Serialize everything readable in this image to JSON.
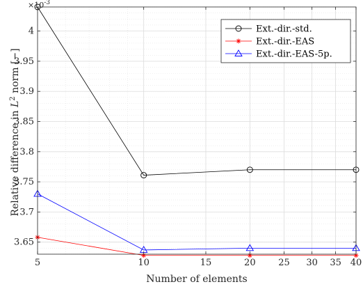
{
  "chart_data": {
    "type": "line",
    "xlabel": "Number of elements",
    "ylabel_main": "Relative difference in ",
    "ylabel_math": "L",
    "ylabel_sup": "2",
    "ylabel_tail": " norm [−]",
    "y_multiplier_base": "×10",
    "y_multiplier_exp": "-3",
    "x_scale": "log",
    "xlim": [
      5,
      40
    ],
    "ylim": [
      3.63,
      4.04
    ],
    "x_ticks": [
      5,
      10,
      15,
      20,
      25,
      30,
      35,
      40
    ],
    "x_tick_labels": [
      "5",
      "10",
      "15",
      "20",
      "25",
      "30",
      "35",
      "40"
    ],
    "y_ticks": [
      3.65,
      3.7,
      3.75,
      3.8,
      3.85,
      3.9,
      3.95,
      4.0
    ],
    "y_tick_labels": [
      "3.65",
      "3.7",
      "3.75",
      "3.8",
      "3.85",
      "3.9",
      "3.95",
      "4"
    ],
    "grid": true,
    "legend_position": "top-right",
    "x": [
      5,
      10,
      20,
      40
    ],
    "series": [
      {
        "name": "Ext.-dir.-std.",
        "color": "#000000",
        "marker": "circle",
        "values": [
          4.04,
          3.761,
          3.77,
          3.77
        ]
      },
      {
        "name": "Ext.-dir.-EAS",
        "color": "#ff0000",
        "marker": "asterisk",
        "values": [
          3.658,
          3.628,
          3.628,
          3.628
        ]
      },
      {
        "name": "Ext.-dir.-EAS-5p.",
        "color": "#0000ff",
        "marker": "triangle",
        "values": [
          3.73,
          3.637,
          3.64,
          3.64
        ]
      }
    ]
  }
}
